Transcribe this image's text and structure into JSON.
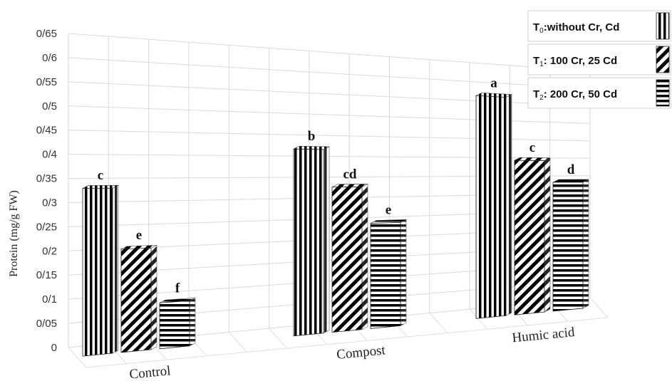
{
  "chart_data": {
    "type": "bar",
    "title": "",
    "xlabel": "",
    "ylabel": "Protein (mg/g FW)",
    "ylim": [
      0,
      0.65
    ],
    "y_ticks": [
      "0",
      "0/05",
      "0/1",
      "0/15",
      "0/2",
      "0/25",
      "0/3",
      "0/35",
      "0/4",
      "0/45",
      "0/5",
      "0/55",
      "0/6",
      "0/65"
    ],
    "grid": true,
    "legend_position": "top-right",
    "categories": [
      "Control",
      "Compost",
      "Humic acid"
    ],
    "series": [
      {
        "legend_main": "T",
        "legend_sub": "0",
        "legend_rest": ":without Cr, Cd",
        "pattern": "vertical-stripes",
        "values": [
          0.35,
          0.44,
          0.59
        ],
        "labels": [
          "c",
          "b",
          "a"
        ]
      },
      {
        "legend_main": "T",
        "legend_sub": "1",
        "legend_rest": ": 100 Cr, 25 Cd",
        "pattern": "diagonal-stripes",
        "values": [
          0.22,
          0.35,
          0.42
        ],
        "labels": [
          "e",
          "cd",
          "c"
        ]
      },
      {
        "legend_main": "T",
        "legend_sub": "2",
        "legend_rest": ": 200 Cr, 50 Cd",
        "pattern": "horizontal-stripes",
        "values": [
          0.1,
          0.26,
          0.36
        ],
        "labels": [
          "f",
          "e",
          "d"
        ]
      }
    ]
  }
}
